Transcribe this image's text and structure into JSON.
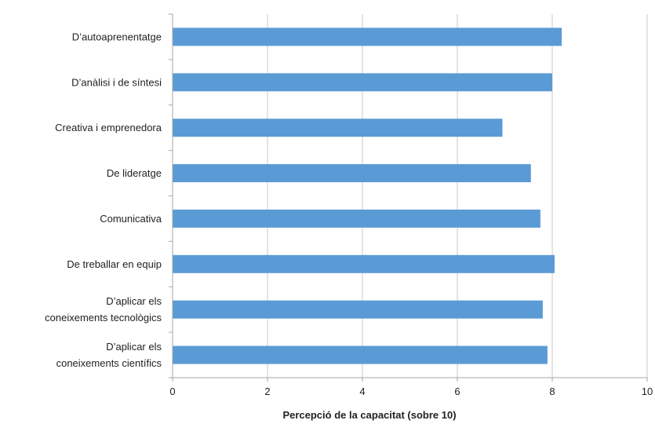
{
  "chart_data": {
    "type": "bar",
    "orientation": "horizontal",
    "categories": [
      [
        "D’autoaprenentatge"
      ],
      [
        "D’anàlisi i de síntesi"
      ],
      [
        "Creativa i emprenedora"
      ],
      [
        "De lideratge"
      ],
      [
        "Comunicativa"
      ],
      [
        "De treballar en equip"
      ],
      [
        "D’aplicar els",
        "coneixements tecnològics"
      ],
      [
        "D’aplicar els",
        "coneixements científics"
      ]
    ],
    "values": [
      8.2,
      8.0,
      6.95,
      7.55,
      7.75,
      8.05,
      7.8,
      7.9
    ],
    "xlabel": "Percepció de la capacitat (sobre 10)",
    "ylabel": "",
    "xlim": [
      0,
      10
    ],
    "xticks": [
      "0",
      "2",
      "4",
      "6",
      "8",
      "10"
    ],
    "xtick_values": [
      0,
      2,
      4,
      6,
      8,
      10
    ],
    "grid": "vertical",
    "bar_color": "#5b9bd5",
    "grid_color": "#c8c8c8",
    "axis_color": "#a6a6a6"
  }
}
